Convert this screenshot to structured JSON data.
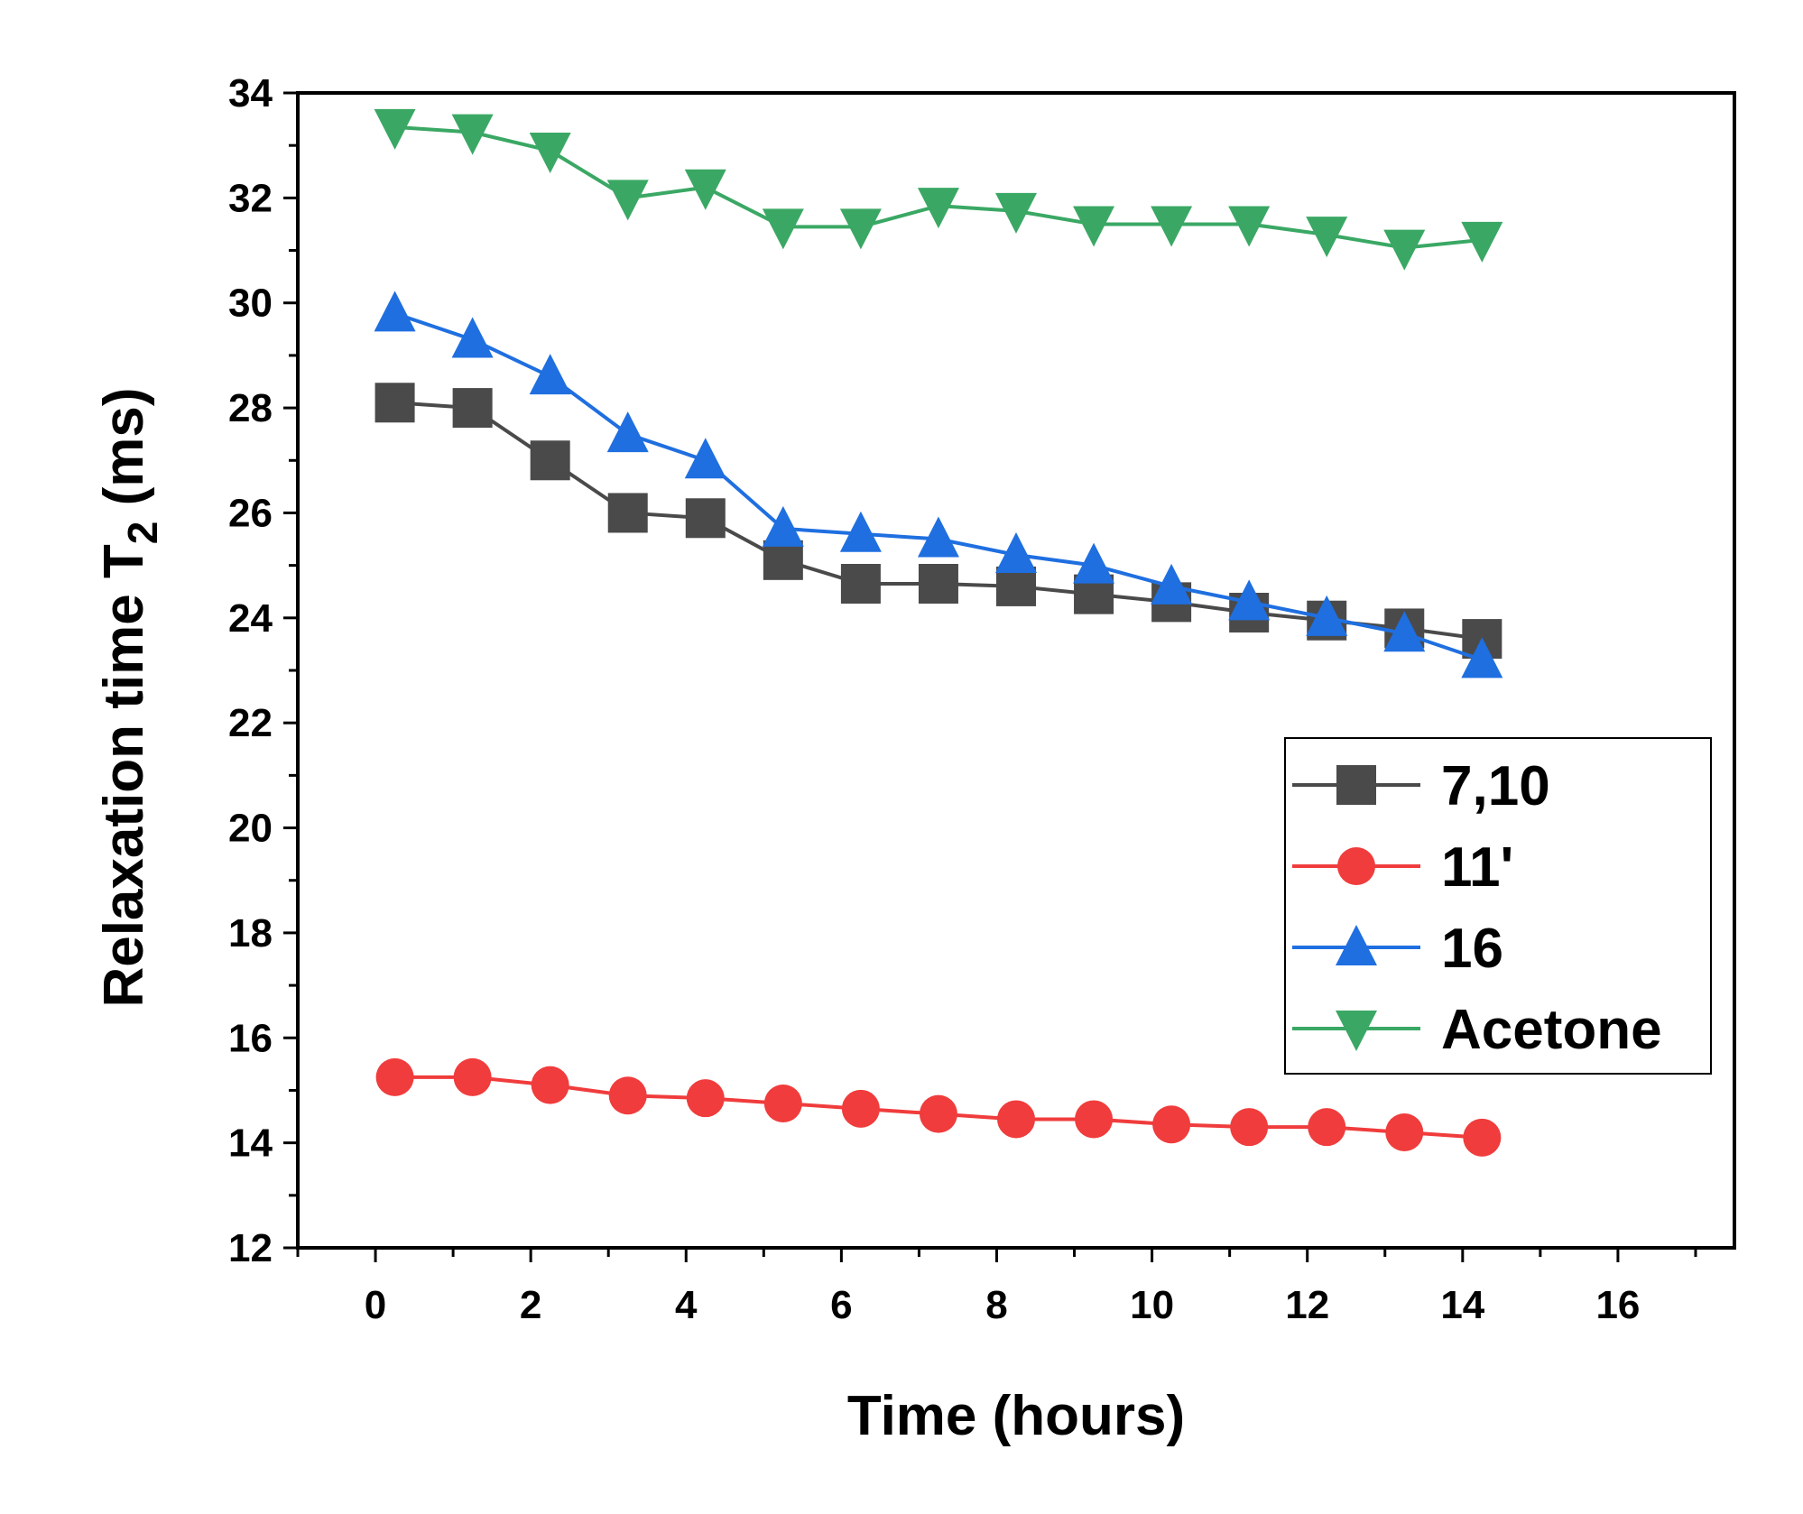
{
  "chart_data": {
    "type": "line",
    "xlabel": "Time (hours)",
    "ylabel": "Relaxation time T",
    "ylabel_subscript": "2",
    "ylabel_suffix": " (ms)",
    "xlim": [
      -1,
      17.5
    ],
    "ylim": [
      12,
      34
    ],
    "xticks": [
      0,
      2,
      4,
      6,
      8,
      10,
      12,
      14,
      16
    ],
    "yticks": [
      12,
      14,
      16,
      18,
      20,
      22,
      24,
      26,
      28,
      30,
      32,
      34
    ],
    "x": [
      0.25,
      1.25,
      2.25,
      3.25,
      4.25,
      5.25,
      6.25,
      7.25,
      8.25,
      9.25,
      10.25,
      11.25,
      12.25,
      13.25,
      14.25
    ],
    "legend_position": "right",
    "series": [
      {
        "name": "7,10",
        "marker": "square",
        "color": "#4a4a4a",
        "values": [
          28.1,
          28.0,
          27.0,
          26.0,
          25.9,
          25.1,
          24.65,
          24.65,
          24.6,
          24.45,
          24.3,
          24.1,
          23.95,
          23.8,
          23.6
        ]
      },
      {
        "name": "11'",
        "marker": "circle",
        "color": "#f03c3c",
        "values": [
          15.25,
          15.25,
          15.1,
          14.9,
          14.85,
          14.75,
          14.65,
          14.55,
          14.45,
          14.45,
          14.35,
          14.3,
          14.3,
          14.2,
          14.1
        ]
      },
      {
        "name": "16",
        "marker": "triangle-up",
        "color": "#1f6fe0",
        "values": [
          29.8,
          29.3,
          28.6,
          27.5,
          27.0,
          25.7,
          25.6,
          25.5,
          25.2,
          25.0,
          24.6,
          24.3,
          24.0,
          23.7,
          23.2
        ]
      },
      {
        "name": "Acetone",
        "marker": "triangle-down",
        "color": "#3aa864",
        "values": [
          33.35,
          33.25,
          32.9,
          32.0,
          32.2,
          31.45,
          31.45,
          31.85,
          31.75,
          31.5,
          31.5,
          31.5,
          31.3,
          31.05,
          31.2
        ]
      }
    ]
  }
}
